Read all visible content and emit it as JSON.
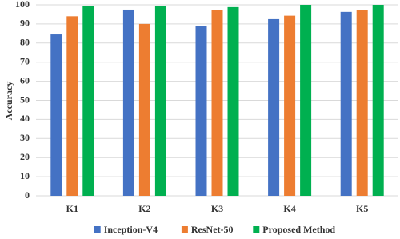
{
  "chart_data": {
    "type": "bar",
    "y_label": "Accuracy",
    "categories": [
      "K1",
      "K2",
      "K3",
      "K4",
      "K5"
    ],
    "series": [
      {
        "name": "Inception-V4",
        "color": "#4472c4",
        "values": [
          84.5,
          97.5,
          89,
          92.5,
          96.3
        ]
      },
      {
        "name": "ResNet-50",
        "color": "#ed7d31",
        "values": [
          94,
          90,
          97.3,
          94.3,
          97.3
        ]
      },
      {
        "name": "Proposed Method",
        "color": "#00b050",
        "values": [
          99.2,
          99.3,
          98.8,
          100,
          100
        ]
      }
    ],
    "ylim": [
      0,
      100
    ],
    "yticks": [
      0,
      10,
      20,
      30,
      40,
      50,
      60,
      70,
      80,
      90,
      100
    ],
    "grid": true,
    "legend": "bottom"
  }
}
